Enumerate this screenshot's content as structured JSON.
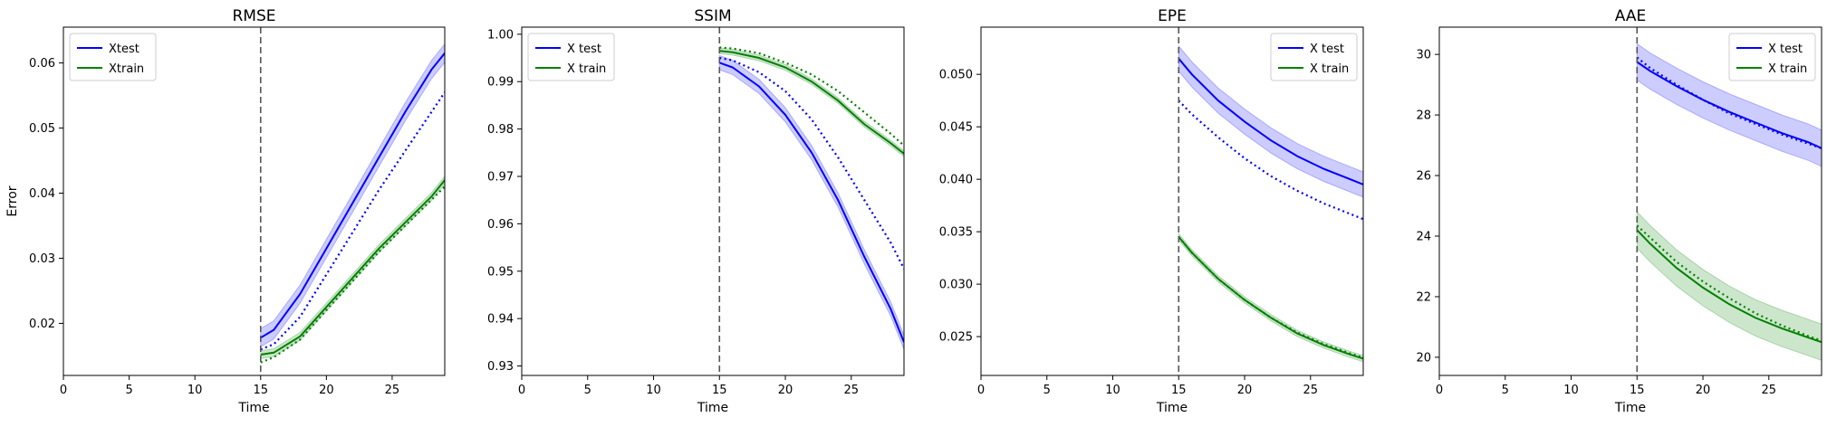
{
  "chart_data": [
    {
      "type": "line",
      "title": "RMSE",
      "xlabel": "Time",
      "ylabel": "Error",
      "xlim": [
        0,
        29
      ],
      "ylim": [
        0.012,
        0.0655
      ],
      "xticks": [
        0,
        5,
        10,
        15,
        20,
        25
      ],
      "yticks": [
        0.02,
        0.03,
        0.04,
        0.05,
        0.06
      ],
      "yticklabels": [
        "0.02",
        "0.03",
        "0.04",
        "0.05",
        "0.06"
      ],
      "vline_x": 15,
      "legend_position": "top-left",
      "legend": [
        {
          "label": "Xtest",
          "color": "#0000ff"
        },
        {
          "label": "Xtrain",
          "color": "#008000"
        }
      ],
      "x": [
        15,
        16,
        18,
        20,
        22,
        24,
        26,
        28,
        29
      ],
      "series": [
        {
          "name": "Xtest",
          "color": "#0000ff",
          "style": "solid",
          "values": [
            0.0178,
            0.019,
            0.0245,
            0.0315,
            0.0385,
            0.0455,
            0.0525,
            0.059,
            0.0615
          ],
          "band": 0.0014
        },
        {
          "color": "#0000ff",
          "style": "dotted",
          "values": [
            0.016,
            0.0168,
            0.021,
            0.0275,
            0.034,
            0.0405,
            0.0465,
            0.0525,
            0.0555
          ]
        },
        {
          "name": "Xtrain",
          "color": "#008000",
          "style": "solid",
          "values": [
            0.0152,
            0.0155,
            0.018,
            0.0225,
            0.027,
            0.0315,
            0.0355,
            0.0395,
            0.042
          ],
          "band": 0.0006
        },
        {
          "color": "#008000",
          "style": "dotted",
          "values": [
            0.014,
            0.0148,
            0.0175,
            0.022,
            0.0265,
            0.031,
            0.035,
            0.039,
            0.041
          ]
        }
      ]
    },
    {
      "type": "line",
      "title": "SSIM",
      "xlabel": "Time",
      "ylabel": "",
      "xlim": [
        0,
        29
      ],
      "ylim": [
        0.928,
        1.0015
      ],
      "xticks": [
        0,
        5,
        10,
        15,
        20,
        25
      ],
      "yticks": [
        0.93,
        0.94,
        0.95,
        0.96,
        0.97,
        0.98,
        0.99,
        1.0
      ],
      "yticklabels": [
        "0.93",
        "0.94",
        "0.95",
        "0.96",
        "0.97",
        "0.98",
        "0.99",
        "1.00"
      ],
      "vline_x": 15,
      "legend_position": "top-left",
      "legend": [
        {
          "label": "X test",
          "color": "#0000ff"
        },
        {
          "label": "X train",
          "color": "#008000"
        }
      ],
      "x": [
        15,
        16,
        18,
        20,
        22,
        24,
        26,
        28,
        29
      ],
      "series": [
        {
          "name": "X test",
          "color": "#0000ff",
          "style": "solid",
          "values": [
            0.994,
            0.993,
            0.989,
            0.983,
            0.975,
            0.965,
            0.953,
            0.942,
            0.935
          ],
          "band": 0.0015
        },
        {
          "color": "#0000ff",
          "style": "dotted",
          "values": [
            0.995,
            0.9945,
            0.992,
            0.988,
            0.982,
            0.974,
            0.965,
            0.956,
            0.9505
          ]
        },
        {
          "name": "X train",
          "color": "#008000",
          "style": "solid",
          "values": [
            0.9965,
            0.9962,
            0.995,
            0.993,
            0.99,
            0.986,
            0.981,
            0.977,
            0.9748
          ],
          "band": 0.0006
        },
        {
          "color": "#008000",
          "style": "dotted",
          "values": [
            0.9972,
            0.997,
            0.996,
            0.994,
            0.9915,
            0.988,
            0.9835,
            0.979,
            0.9765
          ]
        }
      ]
    },
    {
      "type": "line",
      "title": "EPE",
      "xlabel": "Time",
      "ylabel": "",
      "xlim": [
        0,
        29
      ],
      "ylim": [
        0.0213,
        0.0545
      ],
      "xticks": [
        0,
        5,
        10,
        15,
        20,
        25
      ],
      "yticks": [
        0.025,
        0.03,
        0.035,
        0.04,
        0.045,
        0.05
      ],
      "yticklabels": [
        "0.025",
        "0.030",
        "0.035",
        "0.040",
        "0.045",
        "0.050"
      ],
      "vline_x": 15,
      "legend_position": "top-right",
      "legend": [
        {
          "label": "X test",
          "color": "#0000ff"
        },
        {
          "label": "X train",
          "color": "#008000"
        }
      ],
      "x": [
        15,
        16,
        18,
        20,
        22,
        24,
        26,
        28,
        29
      ],
      "series": [
        {
          "name": "X test",
          "color": "#0000ff",
          "style": "solid",
          "values": [
            0.0515,
            0.05,
            0.0475,
            0.0455,
            0.0437,
            0.0422,
            0.041,
            0.04,
            0.0395
          ],
          "band": 0.0012
        },
        {
          "color": "#0000ff",
          "style": "dotted",
          "values": [
            0.0475,
            0.0462,
            0.044,
            0.042,
            0.0403,
            0.0389,
            0.0377,
            0.0367,
            0.0362
          ]
        },
        {
          "name": "X train",
          "color": "#008000",
          "style": "solid",
          "values": [
            0.0345,
            0.033,
            0.0305,
            0.0285,
            0.0268,
            0.0253,
            0.0242,
            0.0233,
            0.0229
          ],
          "band": 0.0003
        },
        {
          "color": "#008000",
          "style": "dotted",
          "values": [
            0.0345,
            0.033,
            0.0305,
            0.0285,
            0.0268,
            0.0254,
            0.0243,
            0.0234,
            0.023
          ]
        }
      ]
    },
    {
      "type": "line",
      "title": "AAE",
      "xlabel": "Time",
      "ylabel": "",
      "xlim": [
        0,
        29
      ],
      "ylim": [
        19.4,
        30.9
      ],
      "xticks": [
        0,
        5,
        10,
        15,
        20,
        25
      ],
      "yticks": [
        20,
        22,
        24,
        26,
        28,
        30
      ],
      "yticklabels": [
        "20",
        "22",
        "24",
        "26",
        "28",
        "30"
      ],
      "vline_x": 15,
      "legend_position": "top-right",
      "legend": [
        {
          "label": "X test",
          "color": "#0000ff"
        },
        {
          "label": "X train",
          "color": "#008000"
        }
      ],
      "x": [
        15,
        16,
        18,
        20,
        22,
        24,
        26,
        28,
        29
      ],
      "series": [
        {
          "name": "X test",
          "color": "#0000ff",
          "style": "solid",
          "values": [
            29.75,
            29.45,
            28.95,
            28.5,
            28.1,
            27.75,
            27.4,
            27.1,
            26.9
          ],
          "band": 0.6
        },
        {
          "color": "#0000ff",
          "style": "dotted",
          "values": [
            29.9,
            29.55,
            29.0,
            28.5,
            28.05,
            27.7,
            27.35,
            27.05,
            26.9
          ]
        },
        {
          "name": "X train",
          "color": "#008000",
          "style": "solid",
          "values": [
            24.2,
            23.75,
            22.95,
            22.3,
            21.75,
            21.3,
            20.95,
            20.65,
            20.5
          ],
          "band": 0.6
        },
        {
          "color": "#008000",
          "style": "dotted",
          "values": [
            24.35,
            23.95,
            23.15,
            22.5,
            21.95,
            21.45,
            21.05,
            20.7,
            20.55
          ]
        }
      ]
    }
  ]
}
